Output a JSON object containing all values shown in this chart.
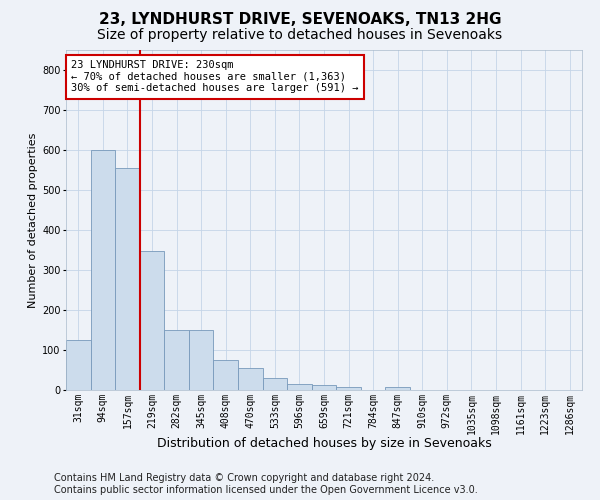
{
  "title": "23, LYNDHURST DRIVE, SEVENOAKS, TN13 2HG",
  "subtitle": "Size of property relative to detached houses in Sevenoaks",
  "xlabel": "Distribution of detached houses by size in Sevenoaks",
  "ylabel": "Number of detached properties",
  "bar_labels": [
    "31sqm",
    "94sqm",
    "157sqm",
    "219sqm",
    "282sqm",
    "345sqm",
    "408sqm",
    "470sqm",
    "533sqm",
    "596sqm",
    "659sqm",
    "721sqm",
    "784sqm",
    "847sqm",
    "910sqm",
    "972sqm",
    "1035sqm",
    "1098sqm",
    "1161sqm",
    "1223sqm",
    "1286sqm"
  ],
  "bar_values": [
    125,
    600,
    555,
    348,
    150,
    150,
    75,
    55,
    30,
    15,
    13,
    7,
    0,
    7,
    0,
    0,
    0,
    0,
    0,
    0,
    0
  ],
  "bar_color": "#ccdcec",
  "bar_edge_color": "#7799bb",
  "vline_index": 3,
  "vline_color": "#cc0000",
  "annotation_text": "23 LYNDHURST DRIVE: 230sqm\n← 70% of detached houses are smaller (1,363)\n30% of semi-detached houses are larger (591) →",
  "annotation_box_facecolor": "#ffffff",
  "annotation_box_edgecolor": "#cc0000",
  "ylim": [
    0,
    850
  ],
  "yticks": [
    0,
    100,
    200,
    300,
    400,
    500,
    600,
    700,
    800
  ],
  "grid_color": "#c5d5e8",
  "footer_line1": "Contains HM Land Registry data © Crown copyright and database right 2024.",
  "footer_line2": "Contains public sector information licensed under the Open Government Licence v3.0.",
  "bg_color": "#eef2f8",
  "plot_bg_color": "#eef2f8",
  "title_fontsize": 11,
  "subtitle_fontsize": 10,
  "xlabel_fontsize": 9,
  "ylabel_fontsize": 8,
  "tick_fontsize": 7,
  "annotation_fontsize": 7.5,
  "footer_fontsize": 7
}
